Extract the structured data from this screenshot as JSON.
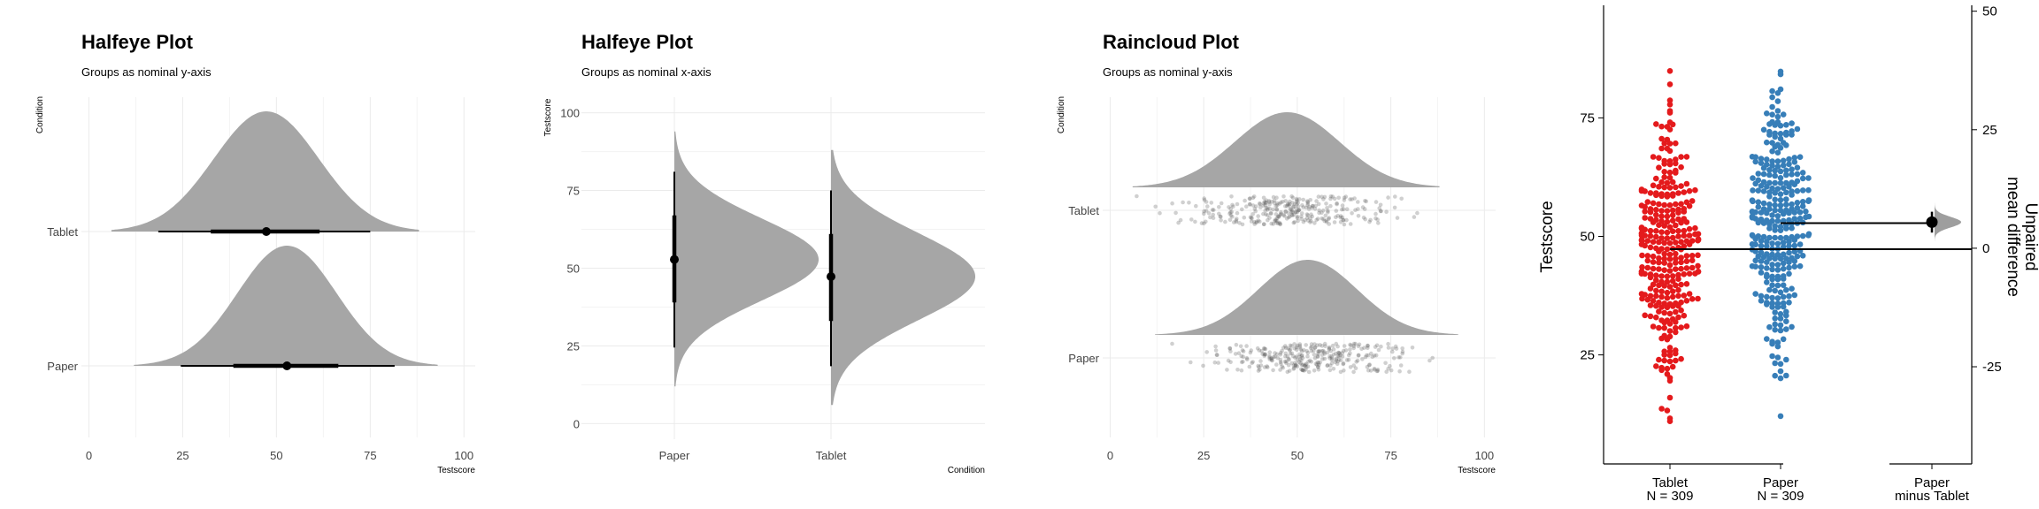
{
  "chart_data": [
    {
      "type": "halfeye",
      "title": "Halfeye Plot",
      "subtitle": "Groups as nominal y-axis",
      "xlabel": "Testscore",
      "ylabel": "Condition",
      "xlim": [
        -2,
        103
      ],
      "xticks": [
        0,
        25,
        50,
        75,
        100
      ],
      "xtick_labels": [
        "0",
        "25",
        "50",
        "75",
        "100"
      ],
      "categories": [
        "Paper",
        "Tablet"
      ],
      "groups": [
        {
          "name": "Paper",
          "density_range": [
            12,
            93
          ],
          "mean": 52.8,
          "sd": 13.2,
          "point": 52.8,
          "interval_66": [
            38.5,
            66.5
          ],
          "interval_95": [
            24.5,
            81.5
          ]
        },
        {
          "name": "Tablet",
          "density_range": [
            6,
            88
          ],
          "mean": 47.3,
          "sd": 14.0,
          "point": 47.3,
          "interval_66": [
            32.5,
            61.5
          ],
          "interval_95": [
            18.5,
            75.0
          ]
        }
      ],
      "grid": true
    },
    {
      "type": "halfeye",
      "title": "Halfeye Plot",
      "subtitle": "Groups as nominal x-axis",
      "xlabel": "Condition",
      "ylabel": "Testscore",
      "ylim": [
        -5,
        105
      ],
      "yticks": [
        0,
        25,
        50,
        75,
        100
      ],
      "ytick_labels": [
        "0",
        "25",
        "50",
        "75",
        "100"
      ],
      "categories": [
        "Paper",
        "Tablet"
      ],
      "groups": [
        {
          "name": "Paper",
          "density_range": [
            12,
            94
          ],
          "mean": 52.8,
          "sd": 13.2,
          "point": 52.8,
          "interval_66": [
            39,
            67
          ],
          "interval_95": [
            24.5,
            81
          ]
        },
        {
          "name": "Tablet",
          "density_range": [
            6,
            88
          ],
          "mean": 47.3,
          "sd": 14.0,
          "point": 47.3,
          "interval_66": [
            33,
            61
          ],
          "interval_95": [
            18.5,
            75
          ]
        }
      ],
      "grid": true
    },
    {
      "type": "raincloud",
      "title": "Raincloud Plot",
      "subtitle": "Groups as nominal y-axis",
      "xlabel": "Testscore",
      "ylabel": "Condition",
      "xlim": [
        -2,
        103
      ],
      "xticks": [
        0,
        25,
        50,
        75,
        100
      ],
      "xtick_labels": [
        "0",
        "25",
        "50",
        "75",
        "100"
      ],
      "categories": [
        "Paper",
        "Tablet"
      ],
      "groups": [
        {
          "name": "Paper",
          "n": 309,
          "density_range": [
            12,
            93
          ],
          "mean": 52.8,
          "sd": 13.2,
          "points_range": [
            12,
            94
          ]
        },
        {
          "name": "Tablet",
          "n": 309,
          "density_range": [
            6,
            88
          ],
          "mean": 47.3,
          "sd": 14.0,
          "points_range": [
            6,
            88
          ]
        }
      ],
      "grid": true
    },
    {
      "type": "estimation",
      "ylabel": "Testscore",
      "ylabel_right_lines": [
        "Unpaired",
        "mean difference"
      ],
      "ylim": [
        2,
        98
      ],
      "yticks": [
        25,
        50,
        75
      ],
      "ytick_labels": [
        "25",
        "50",
        "75"
      ],
      "right_ylim": [
        -45.5,
        50.5
      ],
      "right_yticks": [
        -25,
        0,
        25,
        50
      ],
      "right_ytick_labels": [
        "-25",
        "0",
        "25",
        "50"
      ],
      "groups": [
        {
          "name": "Tablet",
          "n_label": "N = 309",
          "n": 309,
          "color": "#e41a1c",
          "mean": 47.3,
          "sd": 14.0,
          "range": [
            6,
            88
          ]
        },
        {
          "name": "Paper",
          "n_label": "N = 309",
          "n": 309,
          "color": "#377eb8",
          "mean": 52.8,
          "sd": 13.2,
          "range": [
            12,
            94
          ]
        }
      ],
      "contrast": {
        "label_lines": [
          "Paper",
          "minus Tablet"
        ],
        "mean_difference": 5.5,
        "ci": [
          3.3,
          7.7
        ]
      }
    }
  ]
}
